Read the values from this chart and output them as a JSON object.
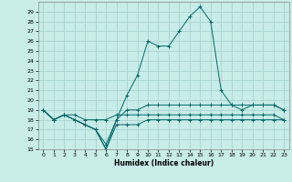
{
  "title": "",
  "xlabel": "Humidex (Indice chaleur)",
  "ylabel": "",
  "bg_color": "#c8ece8",
  "grid_color": "#a8d4d0",
  "line_color": "#006868",
  "ylim": [
    15,
    30
  ],
  "xlim": [
    -0.5,
    23.5
  ],
  "yticks": [
    15,
    16,
    17,
    18,
    19,
    20,
    21,
    22,
    23,
    24,
    25,
    26,
    27,
    28,
    29
  ],
  "xticks": [
    0,
    1,
    2,
    3,
    4,
    5,
    6,
    7,
    8,
    9,
    10,
    11,
    12,
    13,
    14,
    15,
    16,
    17,
    18,
    19,
    20,
    21,
    22,
    23
  ],
  "line1_x": [
    0,
    1,
    2,
    3,
    4,
    5,
    6,
    7,
    8,
    9,
    10,
    11,
    12,
    13,
    14,
    15,
    16,
    17,
    18,
    19,
    20,
    21,
    22,
    23
  ],
  "line1_y": [
    19,
    18,
    18.5,
    18,
    17.5,
    17,
    15,
    18,
    20.5,
    22.5,
    26,
    25.5,
    25.5,
    27,
    28.5,
    29.5,
    28,
    21,
    19.5,
    19,
    19.5,
    19.5,
    19.5,
    19
  ],
  "line2_x": [
    0,
    1,
    2,
    3,
    4,
    5,
    6,
    7,
    8,
    9,
    10,
    11,
    12,
    13,
    14,
    15,
    16,
    17,
    18,
    19,
    20,
    21,
    22,
    23
  ],
  "line2_y": [
    19,
    18,
    18.5,
    18.5,
    18,
    18,
    18,
    18.5,
    18.5,
    18.5,
    18.5,
    18.5,
    18.5,
    18.5,
    18.5,
    18.5,
    18.5,
    18.5,
    18.5,
    18.5,
    18.5,
    18.5,
    18.5,
    18
  ],
  "line3_x": [
    0,
    1,
    2,
    3,
    4,
    5,
    6,
    7,
    8,
    9,
    10,
    11,
    12,
    13,
    14,
    15,
    16,
    17,
    18,
    19,
    20,
    21,
    22,
    23
  ],
  "line3_y": [
    19,
    18,
    18.5,
    18,
    17.5,
    17,
    15.5,
    18,
    19,
    19,
    19.5,
    19.5,
    19.5,
    19.5,
    19.5,
    19.5,
    19.5,
    19.5,
    19.5,
    19.5,
    19.5,
    19.5,
    19.5,
    19
  ],
  "line4_x": [
    0,
    1,
    2,
    3,
    4,
    5,
    6,
    7,
    8,
    9,
    10,
    11,
    12,
    13,
    14,
    15,
    16,
    17,
    18,
    19,
    20,
    21,
    22,
    23
  ],
  "line4_y": [
    19,
    18,
    18.5,
    18,
    17.5,
    17,
    15,
    17.5,
    17.5,
    17.5,
    18,
    18,
    18,
    18,
    18,
    18,
    18,
    18,
    18,
    18,
    18,
    18,
    18,
    18
  ]
}
